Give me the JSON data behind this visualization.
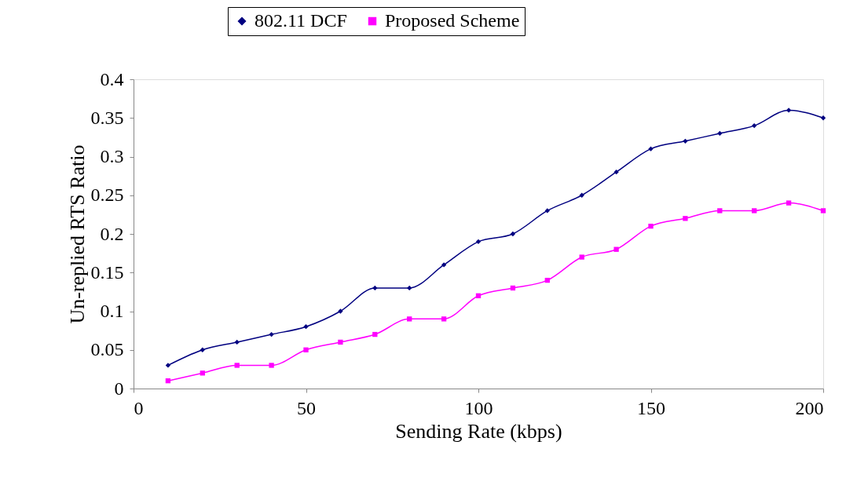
{
  "chart_data": {
    "type": "line",
    "xlabel": "Sending Rate (kbps)",
    "ylabel": "Un-replied RTS Ratio",
    "x": [
      10,
      20,
      30,
      40,
      50,
      60,
      70,
      80,
      90,
      100,
      110,
      120,
      130,
      140,
      150,
      160,
      170,
      180,
      190,
      200
    ],
    "series": [
      {
        "name": "802.11 DCF",
        "color": "#000080",
        "marker": "diamond",
        "values": [
          0.03,
          0.05,
          0.06,
          0.07,
          0.08,
          0.1,
          0.13,
          0.13,
          0.16,
          0.19,
          0.2,
          0.23,
          0.25,
          0.28,
          0.31,
          0.32,
          0.33,
          0.34,
          0.36,
          0.35
        ]
      },
      {
        "name": "Proposed Scheme",
        "color": "#ff00ff",
        "marker": "square",
        "values": [
          0.01,
          0.02,
          0.03,
          0.03,
          0.05,
          0.06,
          0.07,
          0.09,
          0.09,
          0.12,
          0.13,
          0.14,
          0.17,
          0.18,
          0.21,
          0.22,
          0.23,
          0.23,
          0.24,
          0.23
        ]
      }
    ],
    "xlim": [
      0,
      200
    ],
    "xticks": [
      0,
      50,
      100,
      150,
      200
    ],
    "ylim": [
      0,
      0.4
    ],
    "yticks": [
      0,
      0.05,
      0.1,
      0.15,
      0.2,
      0.25,
      0.3,
      0.35,
      0.4
    ],
    "grid": false,
    "legend": "top",
    "line_style": "solid"
  }
}
